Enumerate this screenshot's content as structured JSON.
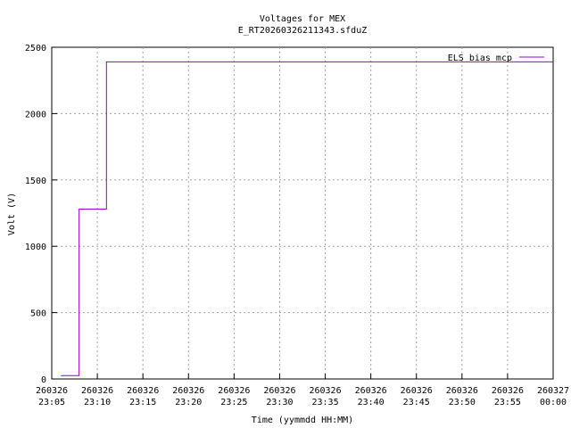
{
  "chart_data": {
    "type": "line",
    "title": "Voltages for MEX",
    "subtitle": "E_RT20260326211343.sfduZ",
    "x_label": "Time (yymmdd HH:MM)",
    "y_label": "Volt (V)",
    "x": [
      "260326 23:06",
      "260326 23:08",
      "260326 23:08",
      "260326 23:11",
      "260326 23:11",
      "260327 00:00"
    ],
    "series": [
      {
        "name": "ELS bias mcp",
        "color": "#9400d3",
        "values": [
          25,
          25,
          1280,
          1280,
          2390,
          2390
        ]
      }
    ],
    "xlim": [
      "260326 23:05",
      "260327 00:00"
    ],
    "xticks": [
      "260326 23:05",
      "260326 23:10",
      "260326 23:15",
      "260326 23:20",
      "260326 23:25",
      "260326 23:30",
      "260326 23:35",
      "260326 23:40",
      "260326 23:45",
      "260326 23:50",
      "260326 23:55",
      "260327 00:00"
    ],
    "ylim": [
      0,
      2500
    ],
    "yticks": [
      0,
      500,
      1000,
      1500,
      2000,
      2500
    ],
    "grid": true,
    "legend": "top-right"
  }
}
